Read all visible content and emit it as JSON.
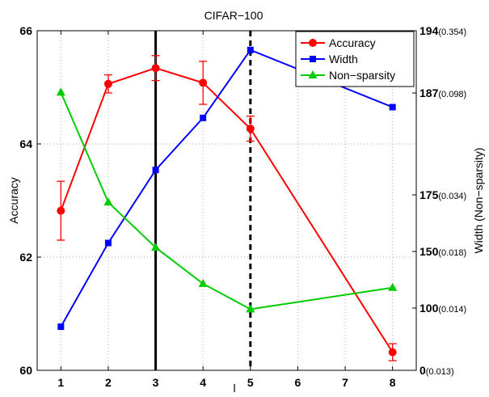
{
  "chart_data": {
    "type": "line",
    "title": "CIFAR−100",
    "xlabel": "l",
    "ylabel": "Accuracy",
    "y2label": "Width (Non−sparsity)",
    "x": [
      1,
      2,
      3,
      4,
      5,
      8
    ],
    "x_ticks": [
      "1",
      "2",
      "3",
      "4",
      "5",
      "6",
      "7",
      "8"
    ],
    "ylim": [
      60,
      66
    ],
    "y_ticks": [
      "60",
      "62",
      "64",
      "66"
    ],
    "y2_ticks": [
      {
        "main": "0",
        "sub": "(0.013)",
        "level": 60
      },
      {
        "main": "100",
        "sub": "(0.014)",
        "level": 61.1
      },
      {
        "main": "150",
        "sub": "(0.018)",
        "level": 62.1
      },
      {
        "main": "175",
        "sub": "(0.034)",
        "level": 63.1
      },
      {
        "main": "187",
        "sub": "(0.098)",
        "level": 64.9
      },
      {
        "main": "194",
        "sub": "(0.354)",
        "level": 66
      }
    ],
    "grid": true,
    "legend_position": "top-right",
    "vlines": [
      {
        "x": 3,
        "style": "solid"
      },
      {
        "x": 5,
        "style": "dashed"
      }
    ],
    "series": [
      {
        "name": "Accuracy",
        "color": "#ff0000",
        "marker": "circle",
        "values": [
          62.82,
          65.06,
          65.34,
          65.08,
          64.27,
          60.32
        ],
        "error": [
          0.52,
          0.16,
          0.22,
          0.38,
          0.22,
          0.15
        ]
      },
      {
        "name": "Width",
        "color": "#0000ff",
        "marker": "square",
        "values": [
          60.77,
          62.25,
          63.54,
          64.46,
          65.66,
          64.65
        ]
      },
      {
        "name": "Non−sparsity",
        "color": "#00cc00",
        "marker": "triangle",
        "values": [
          64.91,
          62.97,
          62.17,
          61.53,
          61.08,
          61.46
        ]
      }
    ]
  }
}
